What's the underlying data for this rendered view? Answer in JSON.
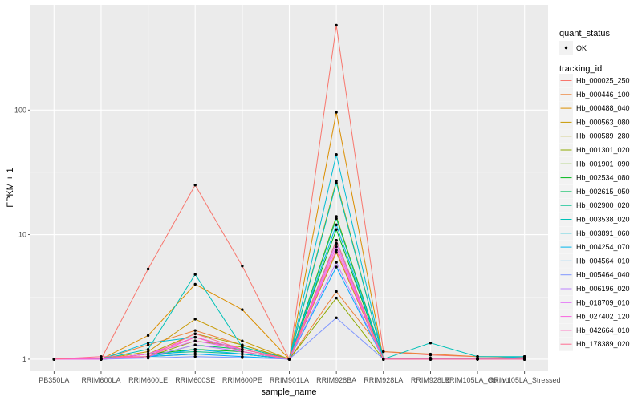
{
  "chart_data": {
    "type": "line",
    "xlabel": "sample_name",
    "ylabel": "FPKM + 1",
    "yscale": "log10",
    "ylim": [
      0.8,
      700
    ],
    "y_ticks": [
      1,
      10,
      100
    ],
    "y_tick_labels": [
      "1",
      "10",
      "100"
    ],
    "grid": true,
    "categories": [
      "PB350LA",
      "RRIM600LA",
      "RRIM600LE",
      "RRIM600SE",
      "RRIM600PE",
      "RRIM901LA",
      "RRIM928BA",
      "RRIM928LA",
      "RRIM928LE",
      "RRIM105LA_Control",
      "RRIM105LA_Stressed"
    ],
    "legend_position": "right",
    "marker_legend": {
      "title": "quant_status",
      "entries": [
        "OK"
      ]
    },
    "series_legend_title": "tracking_id",
    "series": [
      {
        "name": "Hb_000025_250",
        "color": "#F8766D",
        "values": [
          1,
          1,
          5.3,
          25,
          5.6,
          1,
          480,
          1.15,
          1.08,
          1.05,
          1.03
        ]
      },
      {
        "name": "Hb_000446_100",
        "color": "#EC8239",
        "values": [
          1,
          1,
          1.3,
          1.7,
          1.3,
          1,
          3.5,
          1.15,
          1.1,
          1.05,
          1.04
        ]
      },
      {
        "name": "Hb_000488_040",
        "color": "#DB8E00",
        "values": [
          1,
          1,
          1.55,
          4,
          2.5,
          1,
          96,
          1,
          1.02,
          1.02,
          1.02
        ]
      },
      {
        "name": "Hb_000563_080",
        "color": "#C79800",
        "values": [
          1,
          1,
          1.15,
          2.1,
          1.4,
          1,
          7.2,
          1,
          1,
          1,
          1
        ]
      },
      {
        "name": "Hb_000589_280",
        "color": "#AEA200",
        "values": [
          1,
          1,
          1.1,
          1.6,
          1.3,
          1,
          27,
          1,
          1,
          1,
          1
        ]
      },
      {
        "name": "Hb_001301_020",
        "color": "#8FAA00",
        "values": [
          1,
          1,
          1.05,
          1.4,
          1.25,
          1,
          3.1,
          1,
          1,
          1,
          1
        ]
      },
      {
        "name": "Hb_001901_090",
        "color": "#64B200",
        "values": [
          1,
          1,
          1.05,
          1.1,
          1.1,
          1,
          14,
          1,
          1,
          1,
          1
        ]
      },
      {
        "name": "Hb_002534_080",
        "color": "#00B81B",
        "values": [
          1,
          1,
          1.1,
          1.2,
          1.15,
          1,
          11,
          1,
          1,
          1,
          1
        ]
      },
      {
        "name": "Hb_002615_050",
        "color": "#00BD5C",
        "values": [
          1,
          1,
          1.05,
          1.3,
          1.2,
          1,
          9,
          1,
          1,
          1,
          1
        ]
      },
      {
        "name": "Hb_002900_020",
        "color": "#00C08E",
        "values": [
          1,
          1,
          1.1,
          1.15,
          1.1,
          1,
          13.5,
          1,
          1,
          1,
          1
        ]
      },
      {
        "name": "Hb_003538_020",
        "color": "#00C1B7",
        "values": [
          1,
          1,
          1.2,
          4.8,
          1.25,
          1,
          26,
          1,
          1.35,
          1.05,
          1.05
        ]
      },
      {
        "name": "Hb_003891_060",
        "color": "#00BDD4",
        "values": [
          1,
          1,
          1.35,
          1.5,
          1.2,
          1,
          44,
          1,
          1,
          1,
          1.05
        ]
      },
      {
        "name": "Hb_004254_070",
        "color": "#00B5EB",
        "values": [
          1,
          1,
          1.05,
          1.2,
          1.1,
          1,
          12,
          1,
          1,
          1,
          1
        ]
      },
      {
        "name": "Hb_004564_010",
        "color": "#00A7FF",
        "values": [
          1,
          1,
          1.05,
          1.1,
          1.05,
          1,
          5.5,
          1,
          1,
          1,
          1
        ]
      },
      {
        "name": "Hb_005464_040",
        "color": "#7F96FF",
        "values": [
          1,
          1,
          1.02,
          1.05,
          1.03,
          1,
          2.15,
          1,
          1,
          1,
          1
        ]
      },
      {
        "name": "Hb_006196_020",
        "color": "#BC81FF",
        "values": [
          1,
          1,
          1.05,
          1.3,
          1.15,
          1,
          6,
          1,
          1,
          1,
          1
        ]
      },
      {
        "name": "Hb_018709_010",
        "color": "#E26EF7",
        "values": [
          1,
          1,
          1.1,
          1.4,
          1.2,
          1,
          8.5,
          1,
          1,
          1,
          1
        ]
      },
      {
        "name": "Hb_027402_120",
        "color": "#F863DF",
        "values": [
          1,
          1,
          1.1,
          1.5,
          1.2,
          1,
          8,
          1,
          1,
          1,
          1
        ]
      },
      {
        "name": "Hb_042664_010",
        "color": "#FF62BC",
        "values": [
          1,
          1.02,
          1.05,
          1.5,
          1.15,
          1,
          7.5,
          1,
          1,
          1,
          1
        ]
      },
      {
        "name": "Hb_178389_020",
        "color": "#FF6C91",
        "values": [
          1,
          1.05,
          1.05,
          1.6,
          1.2,
          1,
          9,
          1,
          1,
          1,
          1
        ]
      }
    ]
  }
}
